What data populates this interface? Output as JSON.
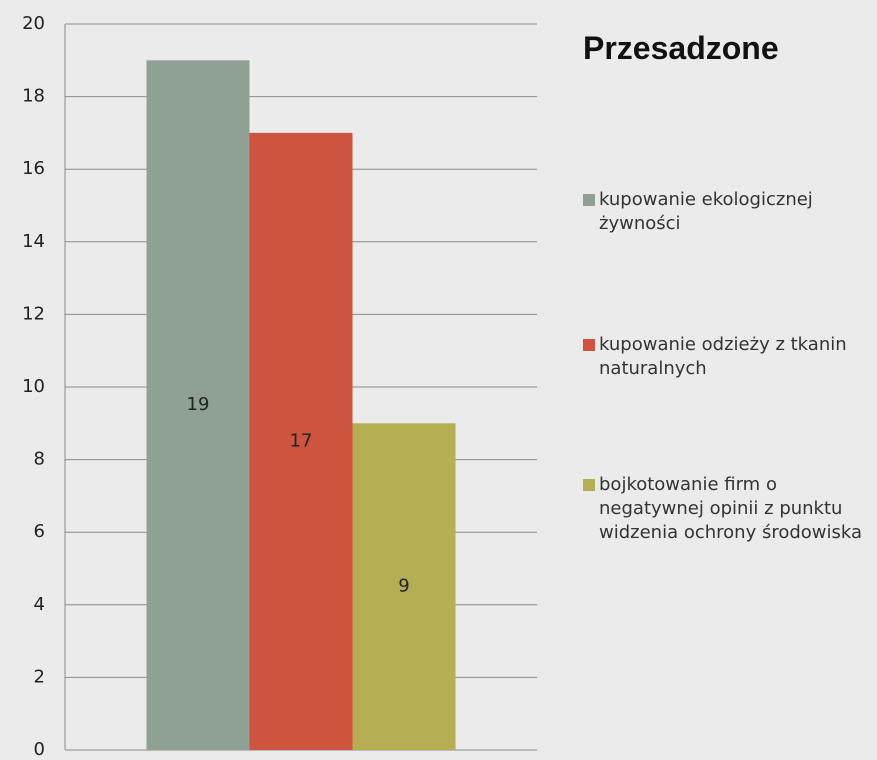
{
  "chart_data": {
    "type": "bar",
    "title": "Przesadzone",
    "categories": [
      null
    ],
    "series": [
      {
        "name": "kupowanie ekologicznej żywności",
        "color": "#8fa095",
        "values": [
          19
        ]
      },
      {
        "name": "kupowanie odzieży z tkanin naturalnych",
        "color": "#cf543f",
        "values": [
          17
        ]
      },
      {
        "name": "bojkotowanie firm o negatywnej opinii z punktu widzenia ochrony środowiska",
        "color": "#b5ae53",
        "values": [
          9
        ]
      }
    ],
    "ylim": [
      0,
      20
    ],
    "yticks": [
      0,
      2,
      4,
      6,
      8,
      10,
      12,
      14,
      16,
      18,
      20
    ],
    "grid": true,
    "legend": "right"
  }
}
